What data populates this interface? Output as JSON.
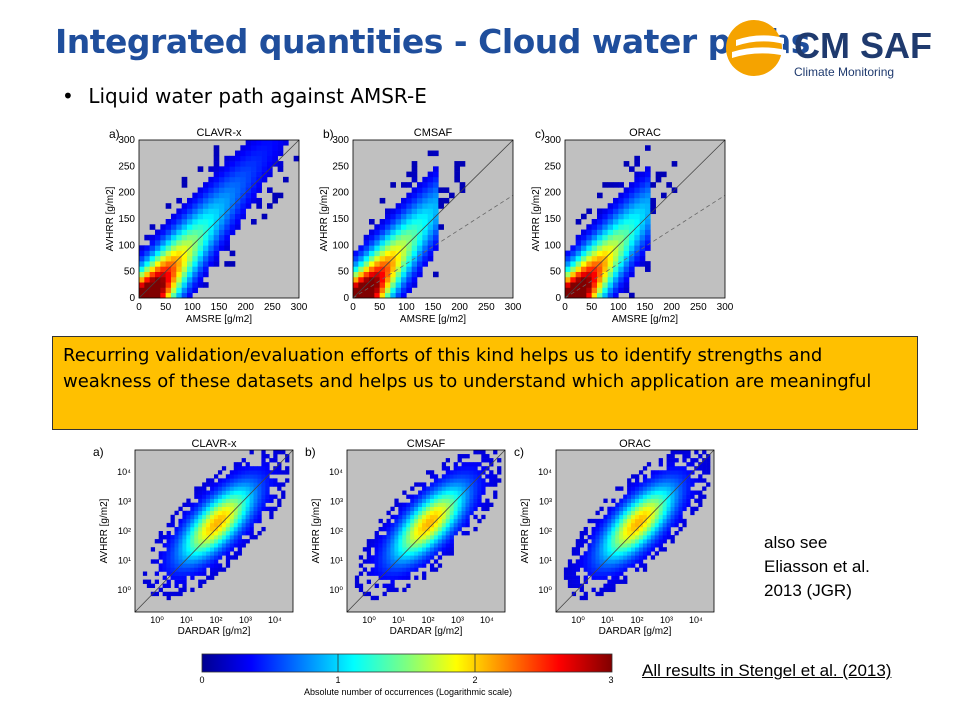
{
  "header": {
    "title": "Integrated quantities - Cloud water paths",
    "logo_text": "CM SAF",
    "logo_subtext": "Climate Monitoring"
  },
  "bullet": {
    "marker": "•",
    "text": "Liquid water path against AMSR-E"
  },
  "top_panels": [
    {
      "letter": "a)",
      "title": "CLAVR-x",
      "xlabel": "AMSRE [g/m2]",
      "ylabel": "AVHRR [g/m2]"
    },
    {
      "letter": "b)",
      "title": "CMSAF",
      "xlabel": "AMSRE [g/m2]",
      "ylabel": "AVHRR [g/m2]"
    },
    {
      "letter": "c)",
      "title": "ORAC",
      "xlabel": "AMSRE [g/m2]",
      "ylabel": "AVHRR [g/m2]"
    }
  ],
  "top_ticks": [
    "0",
    "50",
    "100",
    "150",
    "200",
    "250",
    "300"
  ],
  "note": {
    "text": "Recurring validation/evaluation efforts of this kind helps us to identify strengths and weakness of these datasets and helps us to understand which application are meaningful"
  },
  "bottom_panels": [
    {
      "letter": "a)",
      "title": "CLAVR-x",
      "xlabel": "DARDAR [g/m2]",
      "ylabel": "AVHRR [g/m2]"
    },
    {
      "letter": "b)",
      "title": "CMSAF",
      "xlabel": "DARDAR [g/m2]",
      "ylabel": "AVHRR [g/m2]"
    },
    {
      "letter": "c)",
      "title": "ORAC",
      "xlabel": "DARDAR [g/m2]",
      "ylabel": "AVHRR [g/m2]"
    }
  ],
  "bottom_ticks": [
    "10⁰",
    "10¹",
    "10²",
    "10³",
    "10⁴"
  ],
  "colorbar": {
    "ticks": [
      "0",
      "1",
      "2",
      "3"
    ],
    "label": "Absolute number of occurrences (Logarithmic scale)"
  },
  "reference": {
    "lines": [
      "also see",
      "Eliasson et al.",
      "2013 (JGR)"
    ]
  },
  "stengel_link": "All results in Stengel et al. (2013)",
  "colors": {
    "title": "#1f4e9c",
    "note_bg": "#ffc000",
    "panel_bg": "#c0c0c0"
  }
}
